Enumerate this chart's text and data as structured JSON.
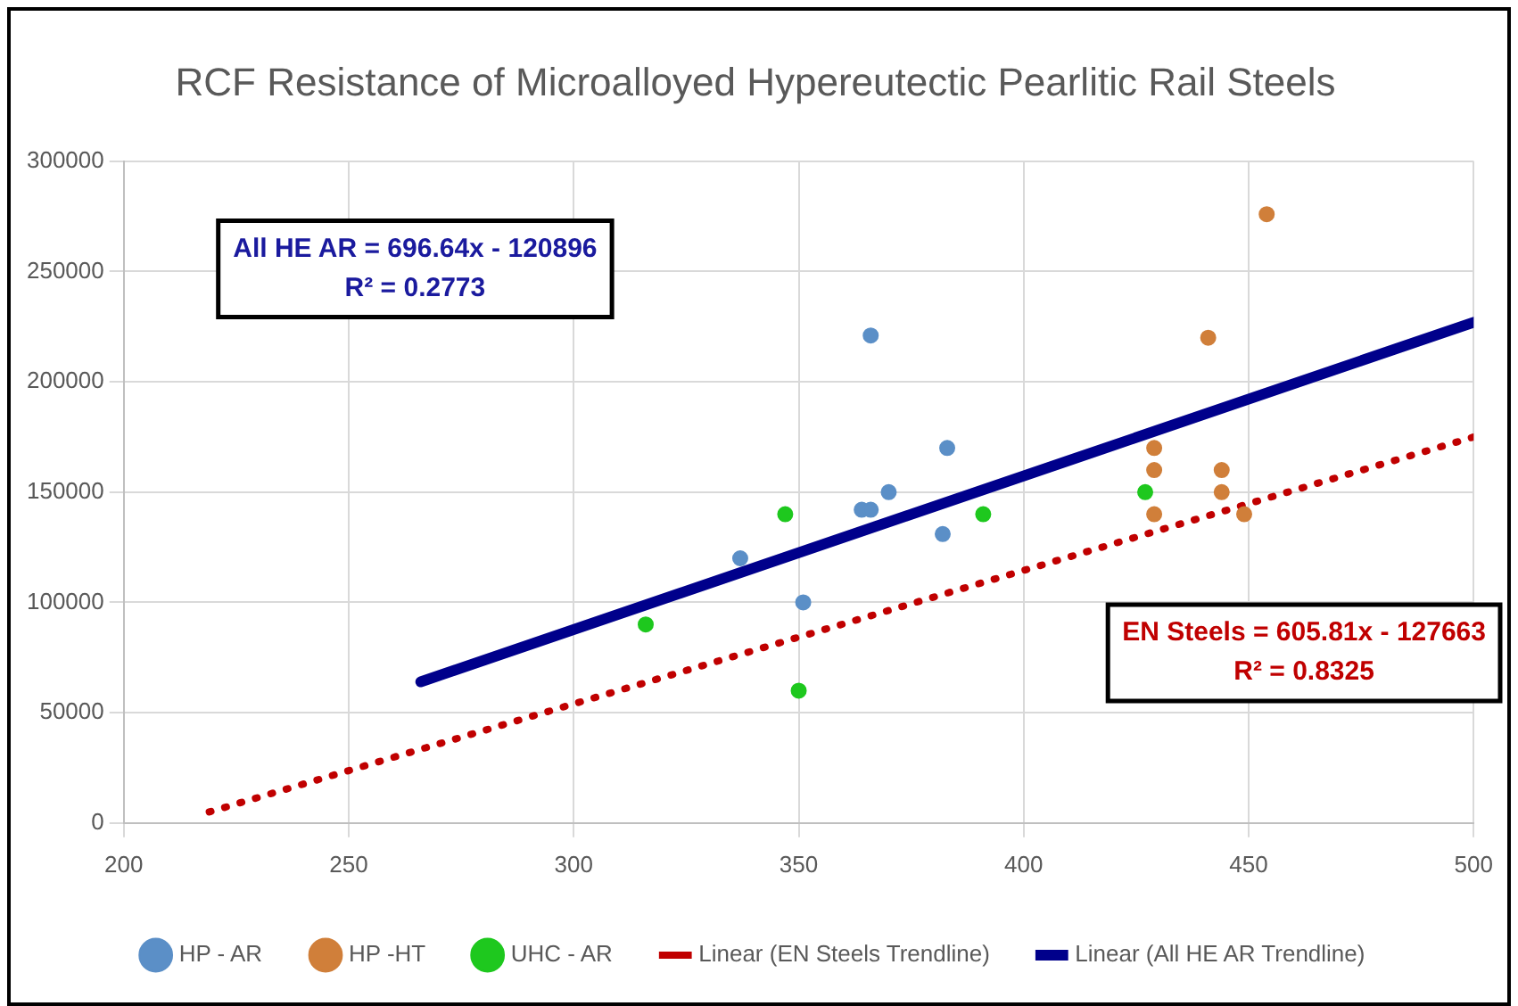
{
  "chart_data": {
    "type": "scatter",
    "title": "RCF Resistance of Microalloyed Hypereutectic Pearlitic Rail Steels",
    "xlim": [
      200,
      500
    ],
    "xticks": [
      200,
      250,
      300,
      350,
      400,
      450,
      500
    ],
    "ylim": [
      0,
      300000
    ],
    "yticks": [
      0,
      50000,
      100000,
      150000,
      200000,
      250000,
      300000
    ],
    "grid": true,
    "legend": "bottom",
    "marker": "circle",
    "series": [
      {
        "name": "HP - AR",
        "color": "#5b8fc7",
        "x": [
          337,
          351,
          364,
          366,
          366,
          370,
          382,
          383
        ],
        "values": [
          120000,
          100000,
          142000,
          142000,
          221000,
          150000,
          131000,
          170000
        ]
      },
      {
        "name": "HP -HT",
        "color": "#d07f3a",
        "x": [
          429,
          429,
          429,
          441,
          444,
          444,
          449,
          454
        ],
        "values": [
          170000,
          160000,
          140000,
          220000,
          160000,
          150000,
          140000,
          276000
        ]
      },
      {
        "name": "UHC - AR",
        "color": "#1ec81e",
        "x": [
          316,
          347,
          350,
          391,
          427
        ],
        "values": [
          90000,
          140000,
          60000,
          140000,
          150000
        ]
      },
      {
        "name": "Linear (EN Steels Trendline)",
        "type": "line",
        "color": "#c00000",
        "line_style": "dotted",
        "marker": "none",
        "x": [
          219,
          500
        ],
        "values": [
          5000,
          175000
        ]
      },
      {
        "name": "Linear (All HE AR Trendline)",
        "type": "line",
        "color": "#00008b",
        "line_style": "solid",
        "marker": "none",
        "x": [
          266,
          500
        ],
        "values": [
          64000,
          227000
        ]
      }
    ],
    "annotations": [
      "All HE AR = 696.64x - 120896\nR² = 0.2773",
      "EN Steels = 605.81x - 127663\nR² = 0.8325"
    ]
  }
}
